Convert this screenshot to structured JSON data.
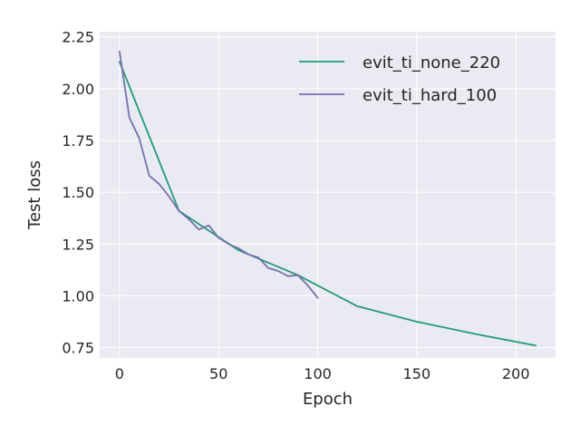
{
  "chart_data": {
    "type": "line",
    "title": "",
    "xlabel": "Epoch",
    "ylabel": "Test loss",
    "xlim": [
      -10,
      220
    ],
    "ylim": [
      0.7,
      2.275
    ],
    "xticks": [
      0,
      50,
      100,
      150,
      200
    ],
    "xtick_labels": [
      "0",
      "50",
      "100",
      "150",
      "200"
    ],
    "yticks": [
      0.75,
      1.0,
      1.25,
      1.5,
      1.75,
      2.0,
      2.25
    ],
    "ytick_labels": [
      "0.75",
      "1.00",
      "1.25",
      "1.50",
      "1.75",
      "2.00",
      "2.25"
    ],
    "grid": true,
    "legend_position": "top-right",
    "series": [
      {
        "name": "evit_ti_none_220",
        "color": "#1b9e77",
        "x": [
          0,
          30,
          60,
          90,
          120,
          150,
          180,
          210
        ],
        "y": [
          2.13,
          1.41,
          1.22,
          1.1,
          0.95,
          0.875,
          0.815,
          0.76
        ]
      },
      {
        "name": "evit_ti_hard_100",
        "color": "#7570b3",
        "x": [
          0,
          5,
          10,
          15,
          20,
          25,
          30,
          35,
          40,
          45,
          50,
          55,
          60,
          65,
          70,
          75,
          80,
          85,
          90,
          95,
          100
        ],
        "y": [
          2.18,
          1.86,
          1.76,
          1.58,
          1.54,
          1.48,
          1.41,
          1.37,
          1.32,
          1.34,
          1.28,
          1.25,
          1.23,
          1.2,
          1.185,
          1.135,
          1.12,
          1.095,
          1.1,
          1.05,
          0.99
        ]
      }
    ]
  }
}
